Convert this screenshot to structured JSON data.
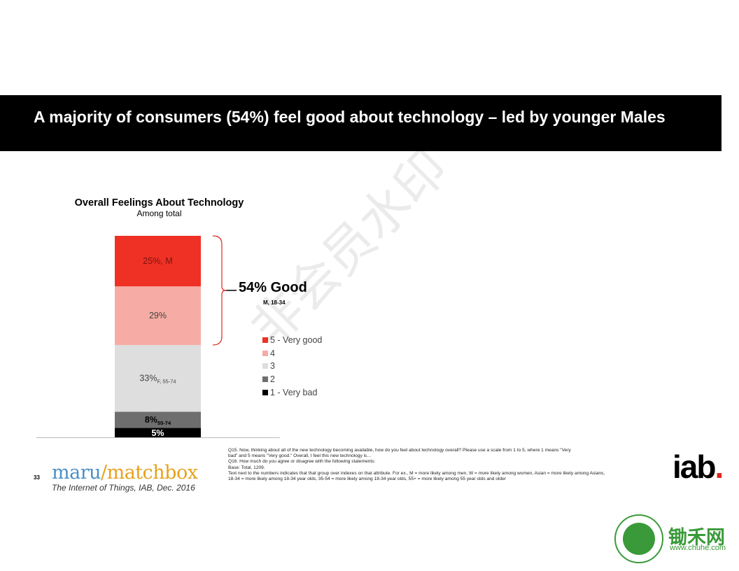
{
  "slide": {
    "title": "A majority of consumers (54%) feel good about technology – led by younger Males",
    "page_number": "33",
    "source": "The Internet of Things, IAB, Dec. 2016",
    "brand_left_part1": "maru",
    "brand_left_sep": "/",
    "brand_left_part2": "matchbox",
    "brand_right": "iab",
    "brand_right_dot": ".",
    "watermark": "非会员水印",
    "footer_badge_name": "锄禾网",
    "footer_badge_url": "www.chuhe.com",
    "footnote_lines": [
      "Q15. Now, thinking about all of the new technology becoming available, how do you feel about technology overall?  Please use a scale from 1 to 5, where 1 means \"Very",
      "bad\" and 5 means \"Very good.\"  Overall, I feel this new technology is…",
      "Q16. How much do you agree or disagree with the following statements:",
      "Base: Total, 1209.",
      "Text next to the numbers indicates that that group over indexes on that attribute.  For ex., M = more likely among men, W = more likely among women, Asian = more likely among Asians,",
      "18-34 = more likely among 18-34 year olds, 35-54 = more likely among 18-34 year olds, 55+ = more likely among 55 year olds and older"
    ]
  },
  "chart_data": {
    "type": "bar",
    "stacked": true,
    "title": "Overall Feelings About Technology",
    "subtitle": "Among total",
    "unit": "%",
    "categories": [
      "Among total"
    ],
    "series": [
      {
        "name": "1 - Very bad",
        "values": [
          5
        ],
        "color": "#000000",
        "label": "5%",
        "sub": ""
      },
      {
        "name": "2",
        "values": [
          8
        ],
        "color": "#6e6e6e",
        "label": "8%",
        "sub": "55-74"
      },
      {
        "name": "3",
        "values": [
          33
        ],
        "color": "#dedede",
        "label": "33%",
        "sub": "F, 55-74"
      },
      {
        "name": "4",
        "values": [
          29
        ],
        "color": "#f6aca4",
        "label": "29%",
        "sub": ""
      },
      {
        "name": "5 - Very good",
        "values": [
          25
        ],
        "color": "#ee3124",
        "label": "25%, M",
        "sub": ""
      }
    ],
    "legend_order": [
      "5 - Very good",
      "4",
      "3",
      "2",
      "1 - Very bad"
    ],
    "legend_position": "right",
    "annotation": {
      "label": "54% Good",
      "sub": "M, 18-34",
      "spans": [
        "4",
        "5 - Very good"
      ]
    }
  }
}
